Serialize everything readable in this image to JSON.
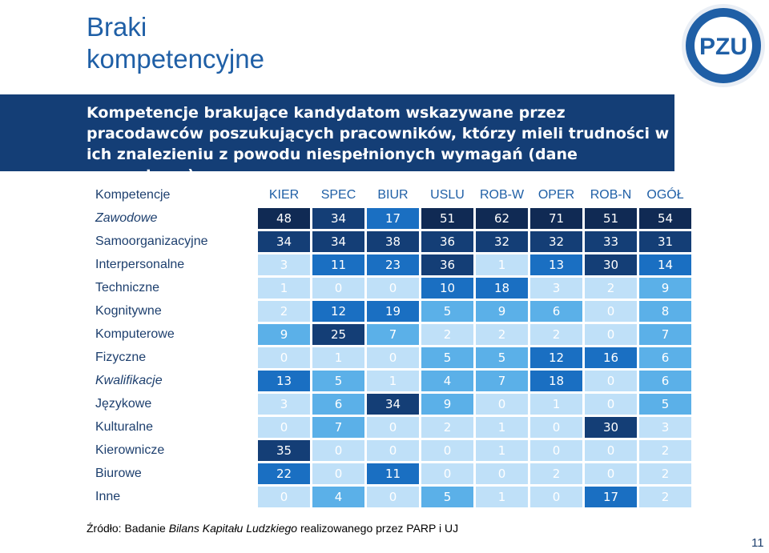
{
  "title_line1": "Braki",
  "title_line2": "kompetencyjne",
  "logo_text": "PZU",
  "subtitle": "Kompetencje brakujące kandydatom wskazywane przez pracodawców poszukujących pracowników, którzy mieli trudności w ich znalezieniu z powodu niespełnionych wymagań (dane procentowe)",
  "source_prefix": "Źródło: Badanie ",
  "source_italic": "Bilans Kapitału Ludzkiego",
  "source_suffix": " realizowanego przez PARP i UJ",
  "page_number": "11",
  "colors": {
    "dark_navy": "#102a54",
    "navy": "#143e76",
    "blue": "#1a6fc2",
    "light_blue": "#5bb0e8",
    "pale_blue": "#bfe0f8"
  },
  "chart_data": {
    "type": "table",
    "header_label": "Kompetencje",
    "columns": [
      "KIER",
      "SPEC",
      "BIUR",
      "USLU",
      "ROB-W",
      "OPER",
      "ROB-N",
      "OGÓŁ"
    ],
    "rows": [
      {
        "label": "Zawodowe",
        "italic": true,
        "values": [
          48,
          34,
          17,
          51,
          62,
          71,
          51,
          54
        ]
      },
      {
        "label": "Samoorganizacyjne",
        "italic": false,
        "values": [
          34,
          34,
          38,
          36,
          32,
          32,
          33,
          31
        ]
      },
      {
        "label": "Interpersonalne",
        "italic": false,
        "values": [
          3,
          11,
          23,
          36,
          1,
          13,
          30,
          14
        ]
      },
      {
        "label": "Techniczne",
        "italic": false,
        "values": [
          1,
          0,
          0,
          10,
          18,
          3,
          2,
          9
        ]
      },
      {
        "label": "Kognitywne",
        "italic": false,
        "values": [
          2,
          12,
          19,
          5,
          9,
          6,
          0,
          8
        ]
      },
      {
        "label": "Komputerowe",
        "italic": false,
        "values": [
          9,
          25,
          7,
          2,
          2,
          2,
          0,
          7
        ]
      },
      {
        "label": "Fizyczne",
        "italic": false,
        "values": [
          0,
          1,
          0,
          5,
          5,
          12,
          16,
          6
        ]
      },
      {
        "label": "Kwalifikacje",
        "italic": true,
        "values": [
          13,
          5,
          1,
          4,
          7,
          18,
          0,
          6
        ]
      },
      {
        "label": "Językowe",
        "italic": false,
        "values": [
          3,
          6,
          34,
          9,
          0,
          1,
          0,
          5
        ]
      },
      {
        "label": "Kulturalne",
        "italic": false,
        "values": [
          0,
          7,
          0,
          2,
          1,
          0,
          30,
          3
        ]
      },
      {
        "label": "Kierownicze",
        "italic": false,
        "values": [
          35,
          0,
          0,
          0,
          1,
          0,
          0,
          2
        ]
      },
      {
        "label": "Biurowe",
        "italic": false,
        "values": [
          22,
          0,
          11,
          0,
          0,
          2,
          0,
          2
        ]
      },
      {
        "label": "Inne",
        "italic": false,
        "values": [
          0,
          4,
          0,
          5,
          1,
          0,
          17,
          2
        ]
      }
    ]
  }
}
